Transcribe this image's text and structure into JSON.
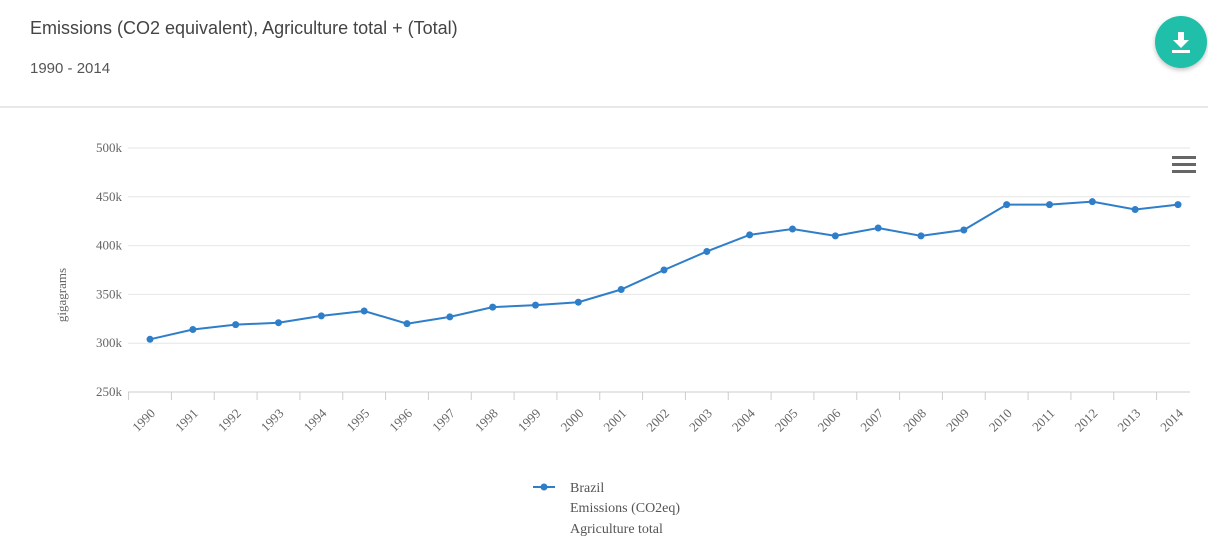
{
  "header": {
    "title": "Emissions (CO2 equivalent), Agriculture total + (Total)",
    "subtitle": "1990 - 2014"
  },
  "icons": {
    "download": "download-icon",
    "menu": "hamburger-menu-icon"
  },
  "colors": {
    "series": "#2f7ec9",
    "accent": "#1fbfaa",
    "grid": "#e6e6e6"
  },
  "chart_data": {
    "type": "line",
    "title": "",
    "xlabel": "",
    "ylabel": "gigagrams",
    "ylim": [
      250000,
      500000
    ],
    "yticks": [
      250000,
      300000,
      350000,
      400000,
      450000,
      500000
    ],
    "ytick_labels": [
      "250k",
      "300k",
      "350k",
      "400k",
      "450k",
      "500k"
    ],
    "grid": true,
    "legend_placement": "bottom-center",
    "x": [
      "1990",
      "1991",
      "1992",
      "1993",
      "1994",
      "1995",
      "1996",
      "1997",
      "1998",
      "1999",
      "2000",
      "2001",
      "2002",
      "2003",
      "2004",
      "2005",
      "2006",
      "2007",
      "2008",
      "2009",
      "2010",
      "2011",
      "2012",
      "2013",
      "2014"
    ],
    "series": [
      {
        "name": "Brazil",
        "legend_lines": [
          "Brazil",
          "Emissions (CO2eq)",
          "Agriculture total"
        ],
        "values": [
          304000,
          314000,
          319000,
          321000,
          328000,
          333000,
          320000,
          327000,
          337000,
          339000,
          342000,
          355000,
          375000,
          394000,
          411000,
          417000,
          410000,
          418000,
          410000,
          416000,
          442000,
          442000,
          445000,
          437000,
          442000
        ]
      }
    ]
  }
}
